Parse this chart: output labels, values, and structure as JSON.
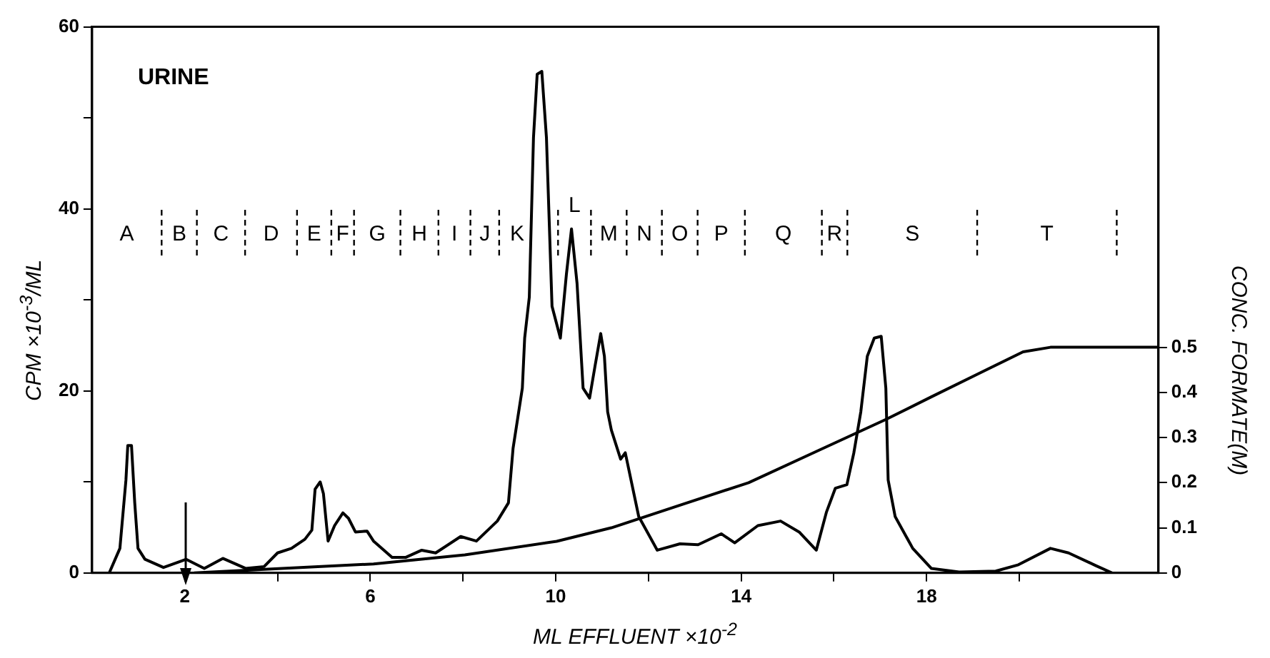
{
  "chart_data": {
    "type": "line",
    "xlabel": "ML EFFLUENT ×10$^{-2}$",
    "ylabel": "CPM ×10$^{-3}$/ML",
    "y2label": "CONC. FORMATE(M)",
    "annotations": [
      "URINE",
      "A",
      "B",
      "C",
      "D",
      "E",
      "F",
      "G",
      "H",
      "I",
      "J",
      "K",
      "L",
      "M",
      "N",
      "O",
      "P",
      "Q",
      "R",
      "S",
      "T"
    ],
    "xlim": [
      0,
      23
    ],
    "xticks": [
      {
        "value": 2,
        "label": "2"
      },
      {
        "value": 4,
        "label": null
      },
      {
        "value": 6,
        "label": "6"
      },
      {
        "value": 8,
        "label": null
      },
      {
        "value": 10,
        "label": "10"
      },
      {
        "value": 12,
        "label": null
      },
      {
        "value": 14,
        "label": "14"
      },
      {
        "value": 16,
        "label": null
      },
      {
        "value": 18,
        "label": "18"
      },
      {
        "value": 20,
        "label": null
      }
    ],
    "ylim": [
      0,
      60
    ],
    "yticks": [
      0,
      {
        "value": 10,
        "label": null
      },
      20,
      {
        "value": 30,
        "label": null
      },
      40,
      {
        "value": 50,
        "label": null
      },
      60
    ],
    "y2lim": [
      0,
      1.21
    ],
    "y2ticks": [
      0,
      0.1,
      0.2,
      0.3,
      0.4,
      0.5
    ],
    "marker": "none",
    "series": [
      {
        "color": "#000000",
        "x": [
          0.37,
          0.6,
          0.73,
          0.77,
          0.85,
          0.92,
          0.99,
          1.14,
          1.54,
          2.03,
          2.42,
          2.82,
          3.31,
          3.71,
          4.0,
          4.3,
          4.59,
          4.74,
          4.81,
          4.92,
          4.99,
          5.09,
          5.23,
          5.41,
          5.53,
          5.68,
          5.93,
          6.07,
          6.47,
          6.76,
          7.11,
          7.41,
          7.95,
          8.29,
          8.74,
          8.98,
          9.08,
          9.28,
          9.33,
          9.43,
          9.52,
          9.6,
          9.7,
          9.8,
          9.92,
          10.1,
          10.23,
          10.34,
          10.46,
          10.59,
          10.73,
          10.85,
          10.97,
          11.05,
          11.12,
          11.2,
          11.4,
          11.5,
          11.79,
          12.19,
          12.68,
          13.07,
          13.57,
          13.86,
          14.36,
          14.85,
          15.25,
          15.62,
          15.84,
          16.03,
          16.28,
          16.43,
          16.58,
          16.72,
          16.87,
          17.02,
          17.12,
          17.17,
          17.32,
          17.7,
          18.1,
          18.7,
          19.49,
          19.98,
          20.67,
          21.06,
          21.65,
          22.0
        ],
        "values": [
          0,
          2.7,
          10.2,
          14,
          14,
          7.7,
          2.7,
          1.5,
          0.6,
          1.5,
          0.5,
          1.6,
          0.5,
          0.7,
          2.2,
          2.7,
          3.7,
          4.7,
          9.2,
          10,
          8.7,
          3.5,
          5.2,
          6.6,
          6,
          4.5,
          4.6,
          3.5,
          1.7,
          1.7,
          2.5,
          2.2,
          4,
          3.5,
          5.7,
          7.7,
          13.7,
          20.3,
          25.8,
          30.3,
          47.8,
          54.8,
          55.1,
          47.8,
          29.3,
          25.8,
          32.8,
          37.8,
          31.8,
          20.3,
          19.2,
          22.8,
          26.3,
          23.8,
          17.7,
          15.7,
          12.5,
          13.2,
          6.2,
          2.5,
          3.2,
          3.1,
          4.3,
          3.3,
          5.2,
          5.7,
          4.5,
          2.5,
          6.7,
          9.3,
          9.7,
          13.2,
          17.7,
          23.8,
          25.8,
          26,
          20.3,
          10.2,
          6.2,
          2.7,
          0.5,
          0.1,
          0.2,
          0.9,
          2.7,
          2.2,
          0.8,
          0
        ]
      },
      {
        "color": "#000000",
        "axis": "y2",
        "x": [
          2.2,
          4.1,
          6.07,
          8.04,
          10.02,
          11.2,
          12.68,
          14.16,
          15.64,
          17.12,
          18.1,
          19.09,
          20.08,
          20.67,
          23.0
        ],
        "values": [
          0,
          0.01,
          0.02,
          0.04,
          0.07,
          0.1,
          0.15,
          0.2,
          0.27,
          0.34,
          0.39,
          0.44,
          0.49,
          0.5,
          0.5
        ]
      }
    ],
    "ref_lines": [
      {
        "axis": "x",
        "value": 1.5,
        "line_style": "dashed"
      },
      {
        "axis": "x",
        "value": 2.26,
        "line_style": "dashed"
      },
      {
        "axis": "x",
        "value": 3.3,
        "line_style": "dashed"
      },
      {
        "axis": "x",
        "value": 4.42,
        "line_style": "dashed"
      },
      {
        "axis": "x",
        "value": 5.16,
        "line_style": "dashed"
      },
      {
        "axis": "x",
        "value": 5.65,
        "line_style": "dashed"
      },
      {
        "axis": "x",
        "value": 6.65,
        "line_style": "dashed"
      },
      {
        "axis": "x",
        "value": 7.47,
        "line_style": "dashed"
      },
      {
        "axis": "x",
        "value": 8.16,
        "line_style": "dashed"
      },
      {
        "axis": "x",
        "value": 8.78,
        "line_style": "dashed"
      },
      {
        "axis": "x",
        "value": 10.05,
        "line_style": "dashed"
      },
      {
        "axis": "x",
        "value": 10.76,
        "line_style": "dashed"
      },
      {
        "axis": "x",
        "value": 11.53,
        "line_style": "dashed"
      },
      {
        "axis": "x",
        "value": 12.29,
        "line_style": "dashed"
      },
      {
        "axis": "x",
        "value": 13.06,
        "line_style": "dashed"
      },
      {
        "axis": "x",
        "value": 14.08,
        "line_style": "dashed"
      },
      {
        "axis": "x",
        "value": 15.74,
        "line_style": "dashed"
      },
      {
        "axis": "x",
        "value": 16.29,
        "line_style": "dashed"
      },
      {
        "axis": "x",
        "value": 19.09,
        "line_style": "dashed"
      },
      {
        "axis": "x",
        "value": 22.1,
        "line_style": "dashed"
      }
    ]
  }
}
